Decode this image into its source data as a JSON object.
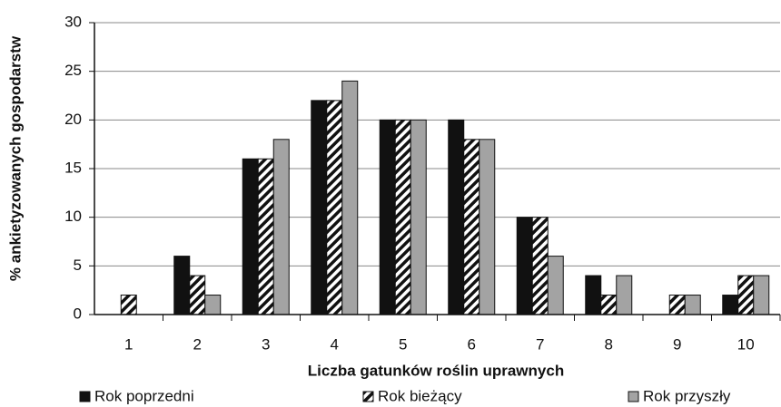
{
  "chart_data": {
    "type": "bar",
    "x_label": "Liczba gatunków roślin uprawnych",
    "y_label": "% ankietyzowanych gospodarstw",
    "categories": [
      "1",
      "2",
      "3",
      "4",
      "5",
      "6",
      "7",
      "8",
      "9",
      "10"
    ],
    "series": [
      {
        "name": "Rok poprzedni",
        "color": "#111111",
        "hatch": false,
        "values": [
          0,
          6,
          16,
          22,
          20,
          20,
          10,
          4,
          0,
          2
        ]
      },
      {
        "name": "Rok bieżący",
        "color": "#111111",
        "hatch": true,
        "values": [
          2,
          4,
          16,
          22,
          20,
          18,
          10,
          2,
          2,
          4
        ]
      },
      {
        "name": "Rok przyszły",
        "color": "#a3a3a3",
        "hatch": false,
        "values": [
          0,
          2,
          18,
          24,
          20,
          18,
          6,
          4,
          2,
          4
        ]
      }
    ],
    "ylim": [
      0,
      30
    ],
    "yticks": [
      0,
      5,
      10,
      15,
      20,
      25,
      30
    ],
    "grid": true,
    "legend": "bottom"
  }
}
